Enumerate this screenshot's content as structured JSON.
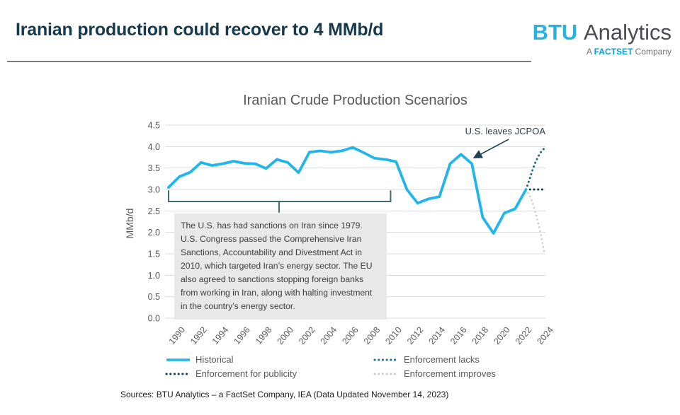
{
  "header": {
    "title": "Iranian production could recover to 4 MMb/d",
    "logo": {
      "brand_primary": "BTU",
      "brand_secondary": "Analytics",
      "tagline_prefix": "A",
      "tagline_brand": "FACTSET",
      "tagline_suffix": "Company"
    }
  },
  "footer": {
    "sources": "Sources: BTU Analytics – a FactSet Company, IEA (Data Updated November 14, 2023)"
  },
  "chart_data": {
    "type": "line",
    "title": "Iranian Crude Production Scenarios",
    "ylabel": "MMb/d",
    "ylim": [
      0,
      4.5
    ],
    "y_ticks": [
      0.0,
      0.5,
      1.0,
      1.5,
      2.0,
      2.5,
      3.0,
      3.5,
      4.0,
      4.5
    ],
    "x_ticks": [
      1990,
      1992,
      1994,
      1996,
      1998,
      2000,
      2002,
      2004,
      2006,
      2008,
      2010,
      2012,
      2014,
      2016,
      2018,
      2020,
      2022,
      2024
    ],
    "grid": true,
    "legend_position": "bottom",
    "colors": {
      "historical": "#22b5ea",
      "enforcement_lacks": "#1c6a8e",
      "enforcement_for_publicity": "#0d3b54",
      "enforcement_improves": "#c8ccce",
      "gridline": "#d9d9d9",
      "axis_text": "#595959",
      "bracket": "#3f6878",
      "arrow": "#1e4255"
    },
    "series": [
      {
        "name": "Historical",
        "key": "historical",
        "style": "solid",
        "color": "#22b5ea",
        "x": [
          1990,
          1991,
          1992,
          1993,
          1994,
          1995,
          1996,
          1997,
          1998,
          1999,
          2000,
          2001,
          2002,
          2003,
          2004,
          2005,
          2006,
          2007,
          2008,
          2009,
          2010,
          2011,
          2012,
          2013,
          2014,
          2015,
          2016,
          2017,
          2018,
          2019,
          2020,
          2021,
          2022,
          2023
        ],
        "values": [
          3.05,
          3.3,
          3.4,
          3.63,
          3.56,
          3.6,
          3.66,
          3.61,
          3.6,
          3.49,
          3.7,
          3.63,
          3.39,
          3.87,
          3.9,
          3.87,
          3.9,
          3.98,
          3.86,
          3.73,
          3.7,
          3.65,
          3.0,
          2.68,
          2.78,
          2.83,
          3.6,
          3.82,
          3.6,
          2.35,
          1.98,
          2.45,
          2.55,
          3.0
        ]
      },
      {
        "name": "Enforcement lacks",
        "key": "enforcement_lacks",
        "style": "dotted",
        "color": "#1c6a8e",
        "points": [
          [
            2023,
            3.0
          ],
          [
            2023.3,
            3.22
          ],
          [
            2023.6,
            3.45
          ],
          [
            2023.9,
            3.65
          ],
          [
            2024.2,
            3.8
          ],
          [
            2024.45,
            3.9
          ],
          [
            2024.7,
            3.96
          ]
        ]
      },
      {
        "name": "Enforcement for publicity",
        "key": "enforcement_for_publicity",
        "style": "dotted",
        "color": "#0d3b54",
        "points": [
          [
            2023,
            3.0
          ],
          [
            2024.7,
            3.0
          ]
        ]
      },
      {
        "name": "Enforcement improves",
        "key": "enforcement_improves",
        "style": "dotted",
        "color": "#c8ccce",
        "points": [
          [
            2023,
            3.0
          ],
          [
            2023.3,
            2.88
          ],
          [
            2023.6,
            2.7
          ],
          [
            2023.9,
            2.45
          ],
          [
            2024.2,
            2.15
          ],
          [
            2024.45,
            1.85
          ],
          [
            2024.7,
            1.52
          ]
        ]
      }
    ],
    "legend_rows": [
      [
        "Historical",
        "Enforcement lacks"
      ],
      [
        "Enforcement for publicity",
        "Enforcement improves"
      ]
    ],
    "annotations": {
      "jcpoa": {
        "text": "U.S. leaves JCPOA",
        "arrow_from_year": 2021.4,
        "arrow_from_value": 4.17,
        "arrow_to_year": 2018.2,
        "arrow_to_value": 3.74
      },
      "callout": {
        "text": "The U.S. has had sanctions on Iran since 1979. U.S. Congress passed the Comprehensive Iran Sanctions, Accountability and Divestment Act in 2010,  which targeted Iran’s energy sector. The EU also agreed to sanctions stopping foreign banks from working in Iran, along with halting investment in the country’s energy sector.",
        "bracket_start_year": 1990,
        "bracket_end_year": 2010.5,
        "bracket_tick_value": 2.98,
        "bracket_bar_value": 2.72,
        "bracket_stem_year": 2000.2,
        "bracket_stem_bottom_value": 2.46
      }
    }
  }
}
